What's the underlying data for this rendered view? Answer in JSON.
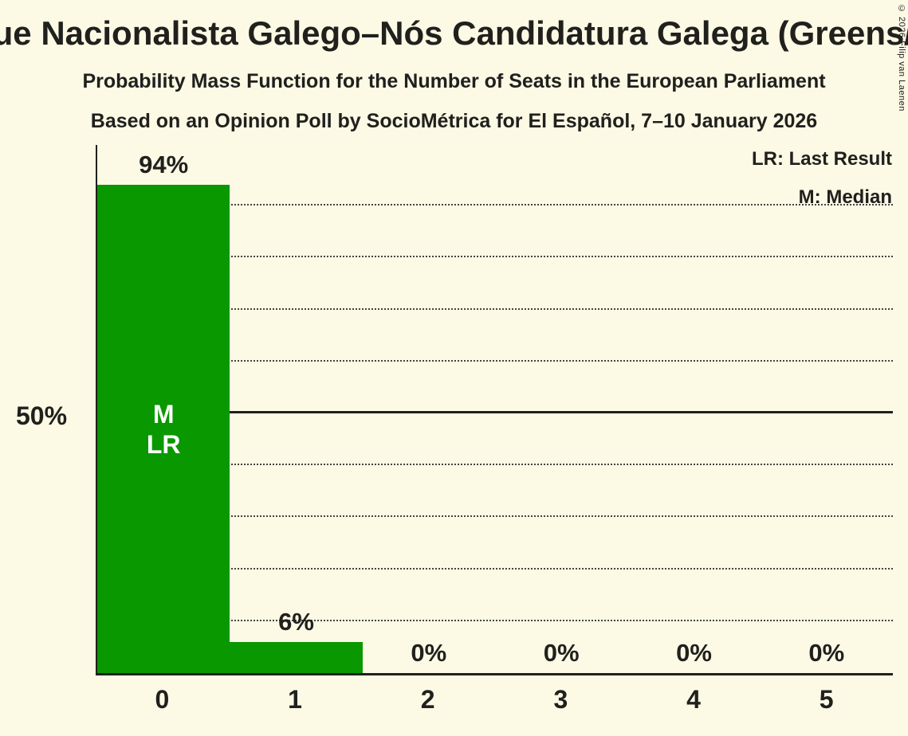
{
  "title": "Bloque Nacionalista Galego–Nós Candidatura Galega (Greens/EFA)",
  "subtitle_line1": "Probability Mass Function for the Number of Seats in the European Parliament",
  "subtitle_line2": "Based on an Opinion Poll by SocioMétrica for El Español, 7–10 January 2026",
  "copyright_notice": "© 2026 Filip van Laenen",
  "legend": {
    "last_result": "LR: Last Result",
    "median": "M: Median"
  },
  "y_axis": {
    "label": "50%"
  },
  "colors": {
    "background": "#FCF9E5",
    "bar": "#0A9800",
    "text": "#20201D",
    "bar_text": "#FFFFFF",
    "gridline": "#44443C"
  },
  "chart_data": {
    "type": "bar",
    "title": "Probability Mass Function for the Number of Seats in the European Parliament",
    "categories": [
      "0",
      "1",
      "2",
      "3",
      "4",
      "5"
    ],
    "values": [
      94,
      6,
      0,
      0,
      0,
      0
    ],
    "value_labels": [
      "94%",
      "6%",
      "0%",
      "0%",
      "0%",
      "0%"
    ],
    "annotations": [
      {
        "bar_index": 0,
        "lines": [
          "M",
          "LR"
        ]
      }
    ],
    "median_seats": 0,
    "last_result_seats": 0,
    "ylim": [
      0,
      102
    ],
    "y_tick_label_pct": 50,
    "gridlines_pct": [
      10,
      20,
      30,
      40,
      50,
      60,
      70,
      80,
      90
    ],
    "solid_gridline_pct": 50,
    "grid_style": "dotted",
    "legend_position": "top-right",
    "bar_color": "#0A9800"
  }
}
